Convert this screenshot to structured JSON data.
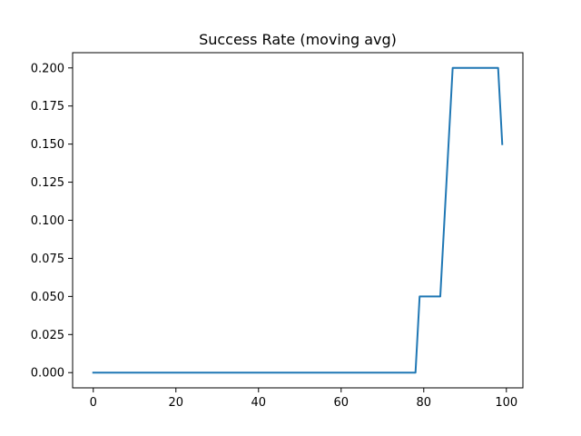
{
  "chart_data": {
    "type": "line",
    "title": "Success Rate (moving avg)",
    "xlabel": "",
    "ylabel": "",
    "xlim": [
      -5,
      104
    ],
    "ylim": [
      -0.01,
      0.21
    ],
    "xticks": [
      0,
      20,
      40,
      60,
      80,
      100
    ],
    "xtick_labels": [
      "0",
      "20",
      "40",
      "60",
      "80",
      "100"
    ],
    "yticks": [
      0,
      0.025,
      0.05,
      0.075,
      0.1,
      0.125,
      0.15,
      0.175,
      0.2
    ],
    "ytick_labels": [
      "0.000",
      "0.025",
      "0.050",
      "0.075",
      "0.100",
      "0.125",
      "0.150",
      "0.175",
      "0.200"
    ],
    "grid": false,
    "legend": "none",
    "series": [
      {
        "color": "#1f77b4",
        "x": [
          0,
          78,
          79,
          84,
          87,
          98,
          99
        ],
        "y": [
          0,
          0,
          0.05,
          0.05,
          0.2,
          0.2,
          0.15
        ]
      }
    ]
  }
}
